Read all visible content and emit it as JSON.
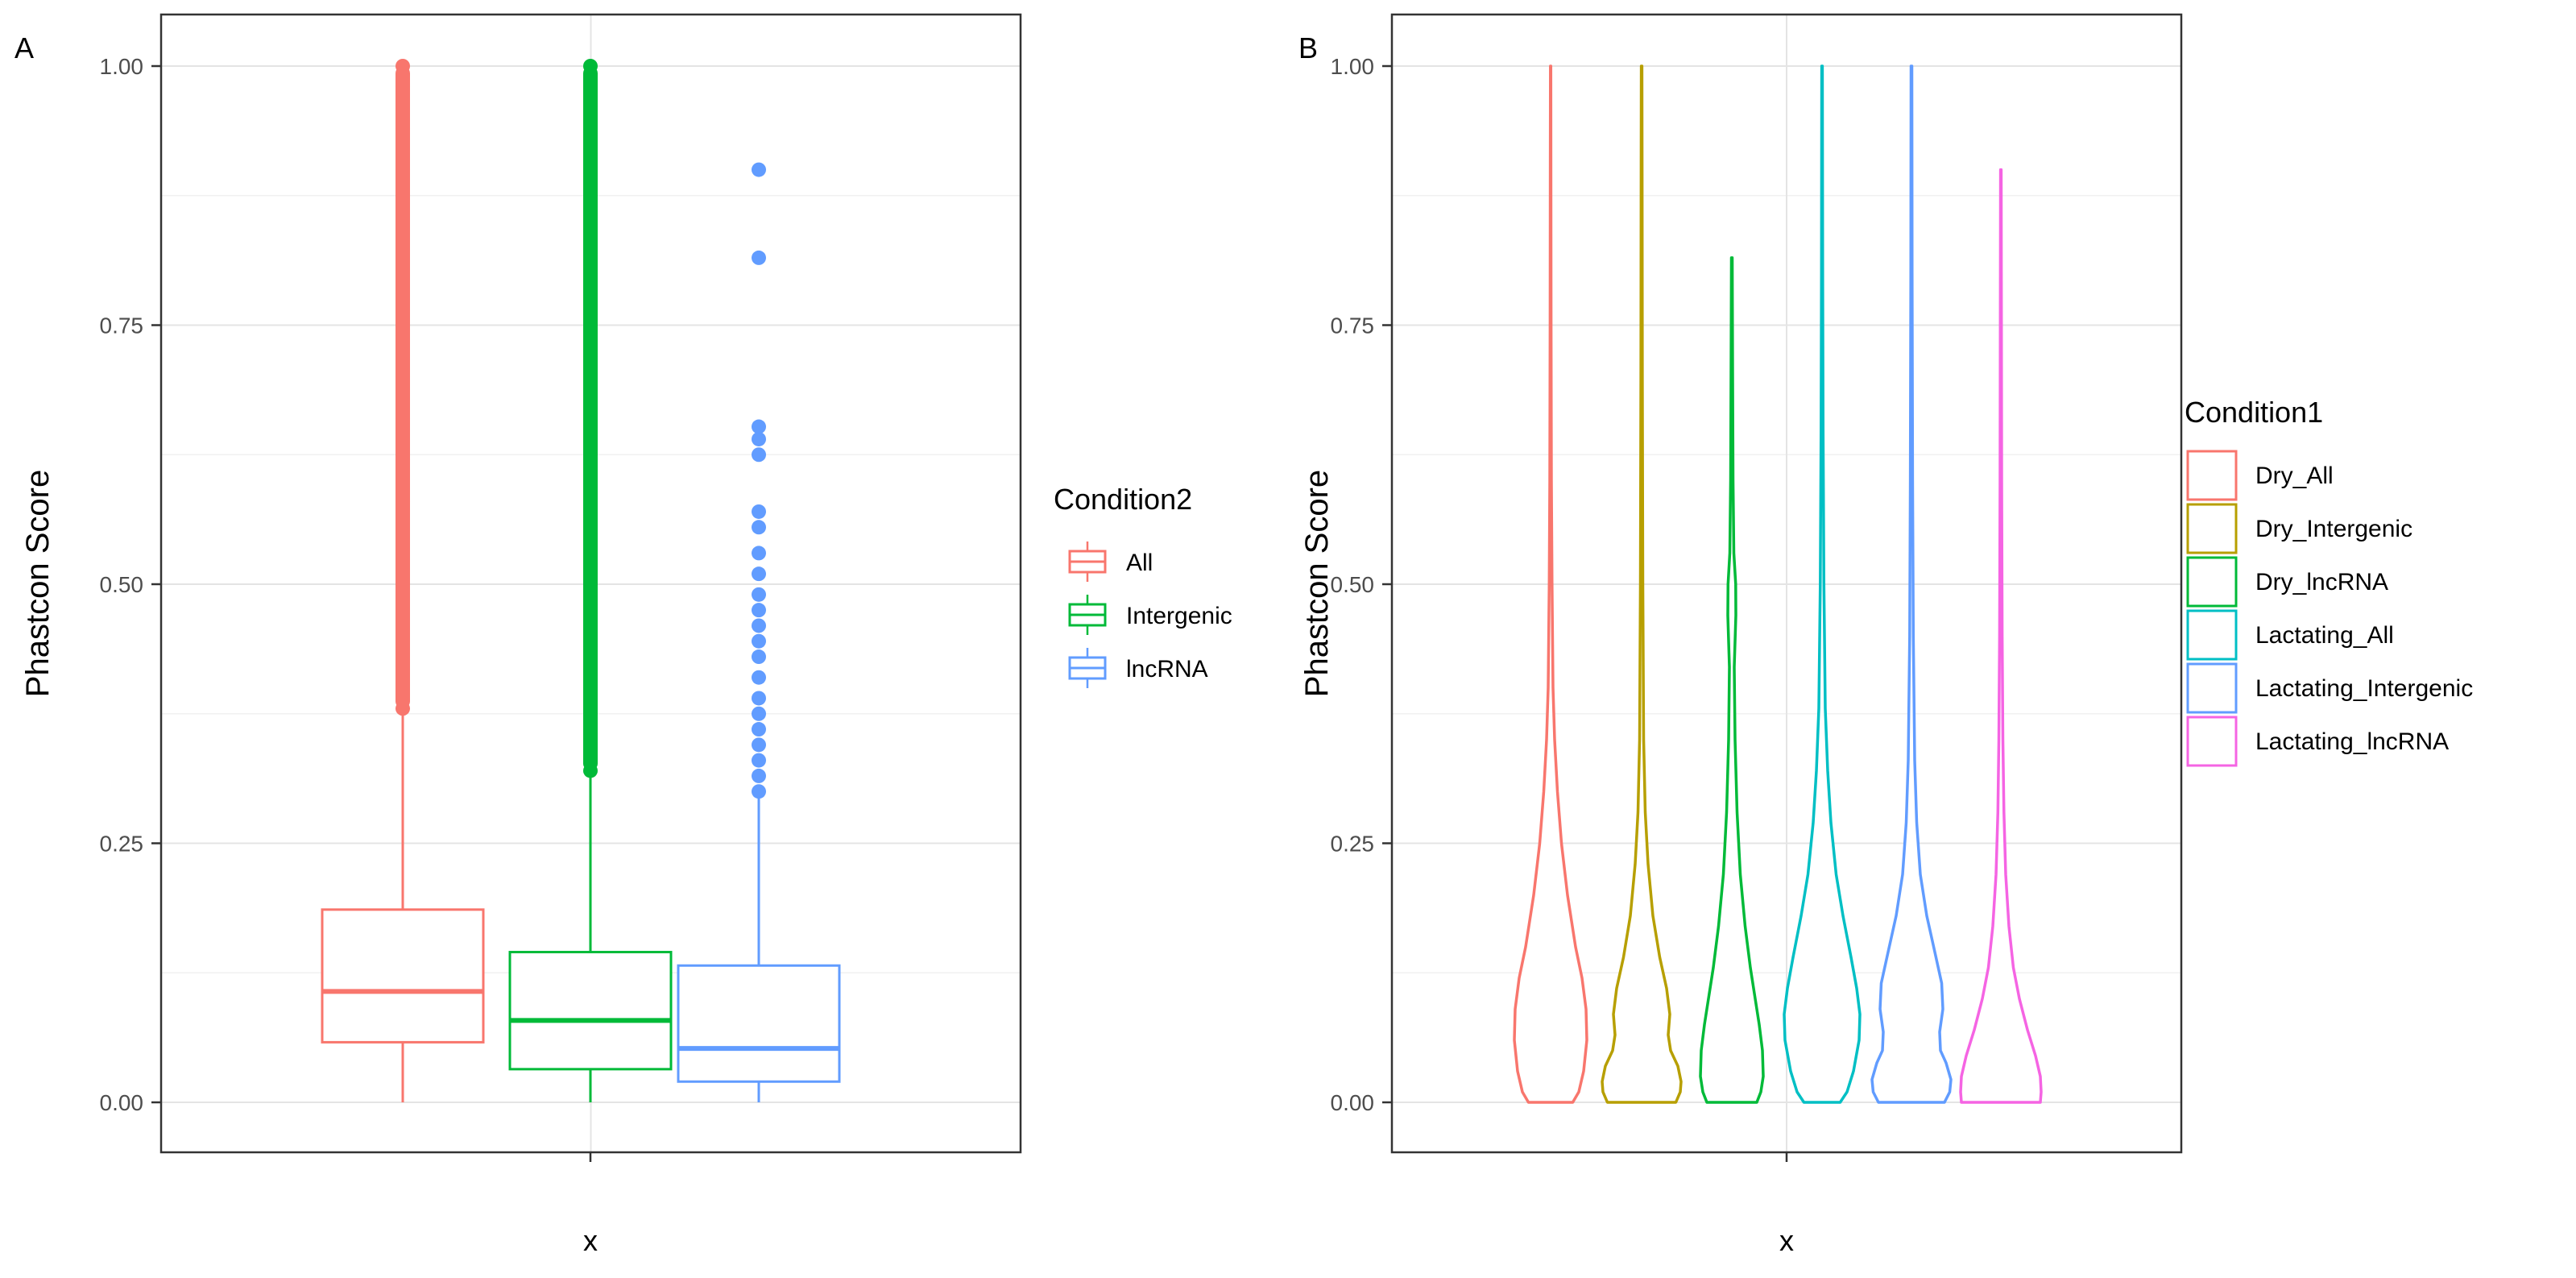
{
  "chart_data": [
    {
      "type": "boxplot",
      "panel_label": "A",
      "xlabel": "x",
      "ylabel": "Phastcon Score",
      "ylim": [
        0,
        1
      ],
      "yticks": [
        "0.00",
        "0.25",
        "0.50",
        "0.75",
        "1.00"
      ],
      "xticks": [],
      "grid": true,
      "legend": {
        "title": "Condition2",
        "position": "right"
      },
      "series": [
        {
          "name": "All",
          "color": "#F8766D",
          "whisker_low": 0.0,
          "q1": 0.058,
          "median": 0.107,
          "q3": 0.186,
          "whisker_high": 0.378,
          "outliers": [
            0.38,
            0.42,
            0.46,
            0.5,
            0.54,
            0.58,
            0.62,
            0.66,
            0.7,
            0.74,
            0.78,
            0.82,
            0.86,
            0.9,
            0.94,
            0.98,
            1.0
          ]
        },
        {
          "name": "Intergenic",
          "color": "#00BA38",
          "whisker_low": 0.0,
          "q1": 0.032,
          "median": 0.079,
          "q3": 0.145,
          "whisker_high": 0.315,
          "outliers": [
            0.32,
            0.36,
            0.4,
            0.44,
            0.48,
            0.52,
            0.56,
            0.6,
            0.64,
            0.68,
            0.72,
            0.76,
            0.8,
            0.84,
            0.88,
            0.92,
            0.96,
            1.0
          ]
        },
        {
          "name": "lncRNA",
          "color": "#619CFF",
          "whisker_low": 0.0,
          "q1": 0.02,
          "median": 0.052,
          "q3": 0.132,
          "whisker_high": 0.295,
          "outliers": [
            0.3,
            0.315,
            0.33,
            0.345,
            0.36,
            0.375,
            0.39,
            0.41,
            0.43,
            0.445,
            0.46,
            0.475,
            0.49,
            0.51,
            0.53,
            0.555,
            0.57,
            0.625,
            0.64,
            0.652,
            0.815,
            0.9
          ]
        }
      ]
    },
    {
      "type": "violin",
      "panel_label": "B",
      "xlabel": "x",
      "ylabel": "Phastcon Score",
      "ylim": [
        0,
        1
      ],
      "yticks": [
        "0.00",
        "0.25",
        "0.50",
        "0.75",
        "1.00"
      ],
      "xticks": [],
      "grid": true,
      "legend": {
        "title": "Condition1",
        "position": "right"
      },
      "series": [
        {
          "name": "Dry_All",
          "color": "#F8766D",
          "max": 1.0,
          "profile": [
            [
              0,
              0.55
            ],
            [
              0.01,
              0.7
            ],
            [
              0.03,
              0.82
            ],
            [
              0.06,
              0.9
            ],
            [
              0.09,
              0.88
            ],
            [
              0.12,
              0.78
            ],
            [
              0.15,
              0.62
            ],
            [
              0.2,
              0.42
            ],
            [
              0.25,
              0.27
            ],
            [
              0.3,
              0.17
            ],
            [
              0.35,
              0.1
            ],
            [
              0.4,
              0.06
            ],
            [
              0.5,
              0.035
            ],
            [
              0.6,
              0.02
            ],
            [
              0.75,
              0.012
            ],
            [
              0.9,
              0.008
            ],
            [
              1.0,
              0.005
            ]
          ]
        },
        {
          "name": "Dry_Intergenic",
          "color": "#B79F00",
          "max": 1.0,
          "profile": [
            [
              0,
              0.85
            ],
            [
              0.01,
              0.96
            ],
            [
              0.02,
              0.98
            ],
            [
              0.035,
              0.9
            ],
            [
              0.05,
              0.72
            ],
            [
              0.065,
              0.66
            ],
            [
              0.085,
              0.7
            ],
            [
              0.11,
              0.62
            ],
            [
              0.14,
              0.45
            ],
            [
              0.18,
              0.28
            ],
            [
              0.23,
              0.16
            ],
            [
              0.28,
              0.09
            ],
            [
              0.35,
              0.05
            ],
            [
              0.5,
              0.03
            ],
            [
              0.7,
              0.018
            ],
            [
              0.9,
              0.012
            ],
            [
              1.0,
              0.008
            ]
          ]
        },
        {
          "name": "Dry_lncRNA",
          "color": "#00BA38",
          "max": 0.815,
          "profile": [
            [
              0,
              0.62
            ],
            [
              0.01,
              0.72
            ],
            [
              0.025,
              0.78
            ],
            [
              0.05,
              0.76
            ],
            [
              0.075,
              0.68
            ],
            [
              0.1,
              0.58
            ],
            [
              0.13,
              0.46
            ],
            [
              0.17,
              0.33
            ],
            [
              0.22,
              0.21
            ],
            [
              0.28,
              0.13
            ],
            [
              0.35,
              0.08
            ],
            [
              0.42,
              0.06
            ],
            [
              0.47,
              0.1
            ],
            [
              0.5,
              0.095
            ],
            [
              0.53,
              0.05
            ],
            [
              0.6,
              0.03
            ],
            [
              0.7,
              0.02
            ],
            [
              0.815,
              0.01
            ]
          ]
        },
        {
          "name": "Lactating_All",
          "color": "#00BFC4",
          "max": 1.0,
          "profile": [
            [
              0,
              0.45
            ],
            [
              0.01,
              0.62
            ],
            [
              0.03,
              0.78
            ],
            [
              0.06,
              0.92
            ],
            [
              0.085,
              0.94
            ],
            [
              0.11,
              0.86
            ],
            [
              0.14,
              0.72
            ],
            [
              0.18,
              0.52
            ],
            [
              0.22,
              0.35
            ],
            [
              0.27,
              0.22
            ],
            [
              0.32,
              0.14
            ],
            [
              0.38,
              0.08
            ],
            [
              0.5,
              0.045
            ],
            [
              0.65,
              0.025
            ],
            [
              0.8,
              0.015
            ],
            [
              1.0,
              0.008
            ]
          ]
        },
        {
          "name": "Lactating_Intergenic",
          "color": "#619CFF",
          "max": 1.0,
          "profile": [
            [
              0,
              0.82
            ],
            [
              0.01,
              0.95
            ],
            [
              0.022,
              0.98
            ],
            [
              0.038,
              0.86
            ],
            [
              0.05,
              0.72
            ],
            [
              0.068,
              0.7
            ],
            [
              0.09,
              0.78
            ],
            [
              0.115,
              0.75
            ],
            [
              0.145,
              0.58
            ],
            [
              0.18,
              0.38
            ],
            [
              0.22,
              0.22
            ],
            [
              0.27,
              0.13
            ],
            [
              0.33,
              0.08
            ],
            [
              0.45,
              0.045
            ],
            [
              0.6,
              0.028
            ],
            [
              0.8,
              0.016
            ],
            [
              1.0,
              0.01
            ]
          ]
        },
        {
          "name": "Lactating_lncRNA",
          "color": "#F564E3",
          "max": 0.9,
          "profile": [
            [
              0,
              0.98
            ],
            [
              0.01,
              1.0
            ],
            [
              0.025,
              0.98
            ],
            [
              0.045,
              0.86
            ],
            [
              0.07,
              0.66
            ],
            [
              0.1,
              0.46
            ],
            [
              0.13,
              0.31
            ],
            [
              0.17,
              0.2
            ],
            [
              0.22,
              0.12
            ],
            [
              0.28,
              0.075
            ],
            [
              0.35,
              0.05
            ],
            [
              0.45,
              0.032
            ],
            [
              0.6,
              0.02
            ],
            [
              0.75,
              0.013
            ],
            [
              0.9,
              0.008
            ]
          ]
        }
      ]
    }
  ]
}
